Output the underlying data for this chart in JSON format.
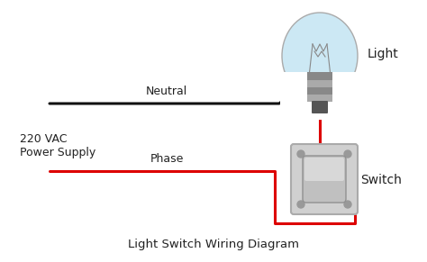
{
  "bg_color": "#ffffff",
  "title": "Light Switch Wiring Diagram",
  "title_fontsize": 9.5,
  "title_color": "#222222",
  "label_220": "220 VAC",
  "label_power": "Power Supply",
  "label_neutral": "Neutral",
  "label_phase": "Phase",
  "label_light": "Light",
  "label_switch": "Switch",
  "phase_wire_color": "#dd0000",
  "neutral_wire_color": "#111111",
  "wire_lw": 2.2,
  "bulb_color": "#cce8f4",
  "bulb_glass_border": "#aaaaaa",
  "bulb_base_colors": [
    "#999999",
    "#888888",
    "#777777"
  ],
  "switch_face_color": "#d0d0d0",
  "switch_edge_color": "#aaaaaa",
  "toggle_face_color": "#c0c0c0",
  "toggle_edge_color": "#909090",
  "label_fontsize": 9.0,
  "label_color": "#222222"
}
